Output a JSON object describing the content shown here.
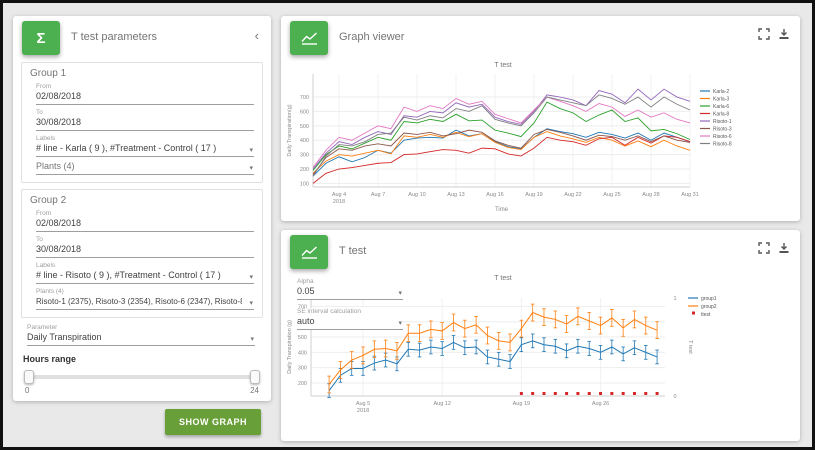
{
  "icons": {
    "sigma": "Σ",
    "dropdown": "▾",
    "collapse": "‹",
    "chart": "line-chart",
    "fullscreen": "fullscreen",
    "download": "download"
  },
  "colors": {
    "accent_green": "#4caf50",
    "button_green": "#689f38",
    "page_bg": "#e9e9e9",
    "ttest_marker_red": "#d62728"
  },
  "left_panel": {
    "title": "T test parameters",
    "groups": [
      {
        "title": "Group 1",
        "from_label": "From",
        "from_value": "02/08/2018",
        "to_label": "To",
        "to_value": "30/08/2018",
        "labels_label": "Labels",
        "labels_value": "# line - Karla ( 9 ), #Treatment - Control ( 17 )",
        "plants_label": "",
        "plants_value": "Plants (4)"
      },
      {
        "title": "Group 2",
        "from_label": "From",
        "from_value": "02/08/2018",
        "to_label": "To",
        "to_value": "30/08/2018",
        "labels_label": "Labels",
        "labels_value": "# line - Risoto ( 9 ), #Treatment - Control ( 17 )",
        "plants_label": "Plants (4)",
        "plants_value": "Risoto-1 (2375), Risoto-3 (2354), Risoto-6 (2347), Risoto-8 (2353)"
      }
    ],
    "parameter_label": "Parameter",
    "parameter_value": "Daily Transpiration",
    "hours_label": "Hours range",
    "hours_min": "0",
    "hours_max": "24",
    "show_graph": "SHOW GRAPH"
  },
  "graph_viewer": {
    "title": "Graph viewer"
  },
  "ttest_panel": {
    "title": "T test",
    "alpha_label": "Alpha",
    "alpha_value": "0.05",
    "se_label": "SE interval calculation",
    "se_value": "auto"
  },
  "chart_data": [
    {
      "type": "line",
      "title": "T test",
      "xlabel": "Time",
      "ylabel": "Daily Transpiration(g)",
      "legend_position": "right",
      "grid": true,
      "xlim": [
        2,
        31
      ],
      "ylim": [
        75,
        860
      ],
      "yticks": [
        100,
        200,
        300,
        400,
        500,
        600,
        700
      ],
      "xticks": [
        {
          "v": 4,
          "label": "Aug 4",
          "sub": "2018"
        },
        {
          "v": 7,
          "label": "Aug 7"
        },
        {
          "v": 10,
          "label": "Aug 10"
        },
        {
          "v": 13,
          "label": "Aug 13"
        },
        {
          "v": 16,
          "label": "Aug 16"
        },
        {
          "v": 19,
          "label": "Aug 19"
        },
        {
          "v": 22,
          "label": "Aug 22"
        },
        {
          "v": 25,
          "label": "Aug 25"
        },
        {
          "v": 28,
          "label": "Aug 28"
        },
        {
          "v": 31,
          "label": "Aug 31"
        }
      ],
      "x": [
        2,
        3,
        4,
        5,
        6,
        7,
        8,
        9,
        10,
        11,
        12,
        13,
        14,
        15,
        16,
        17,
        18,
        19,
        20,
        21,
        22,
        23,
        24,
        25,
        26,
        27,
        28,
        29,
        30,
        31
      ],
      "series": [
        {
          "name": "Karla-2",
          "color": "#1f77b4",
          "values": [
            150,
            240,
            285,
            250,
            280,
            330,
            310,
            400,
            415,
            420,
            415,
            470,
            430,
            445,
            390,
            355,
            340,
            420,
            480,
            460,
            445,
            420,
            455,
            440,
            415,
            450,
            400,
            450,
            420,
            390
          ]
        },
        {
          "name": "Karla-3",
          "color": "#ff7f0e",
          "values": [
            170,
            255,
            300,
            290,
            310,
            330,
            305,
            430,
            420,
            440,
            420,
            455,
            425,
            445,
            385,
            350,
            335,
            420,
            460,
            430,
            410,
            385,
            420,
            400,
            360,
            395,
            355,
            400,
            360,
            330
          ]
        },
        {
          "name": "Karla-6",
          "color": "#2ca02c",
          "values": [
            190,
            300,
            360,
            340,
            380,
            420,
            400,
            530,
            520,
            545,
            530,
            580,
            535,
            540,
            470,
            450,
            425,
            520,
            665,
            620,
            590,
            530,
            575,
            610,
            530,
            555,
            465,
            475,
            445,
            405
          ]
        },
        {
          "name": "Karla-8",
          "color": "#d62728",
          "values": [
            100,
            170,
            200,
            210,
            225,
            240,
            245,
            300,
            305,
            320,
            335,
            330,
            310,
            345,
            340,
            305,
            290,
            345,
            420,
            400,
            390,
            365,
            410,
            420,
            365,
            420,
            380,
            430,
            420,
            390
          ]
        },
        {
          "name": "Risoto-1",
          "color": "#9467bd",
          "values": [
            200,
            310,
            390,
            370,
            420,
            460,
            440,
            570,
            560,
            600,
            590,
            660,
            630,
            650,
            560,
            530,
            510,
            600,
            715,
            700,
            680,
            640,
            745,
            720,
            660,
            755,
            680,
            755,
            700,
            670
          ]
        },
        {
          "name": "Risoto-3",
          "color": "#8c564b",
          "values": [
            160,
            280,
            340,
            330,
            360,
            375,
            360,
            450,
            440,
            455,
            430,
            445,
            470,
            455,
            395,
            365,
            345,
            440,
            475,
            455,
            430,
            400,
            435,
            425,
            400,
            430,
            390,
            430,
            400,
            385
          ]
        },
        {
          "name": "Risoto-6",
          "color": "#e377c2",
          "values": [
            210,
            330,
            420,
            400,
            450,
            500,
            480,
            630,
            600,
            640,
            620,
            690,
            650,
            670,
            580,
            550,
            520,
            610,
            700,
            670,
            640,
            600,
            655,
            630,
            565,
            610,
            560,
            590,
            545,
            520
          ]
        },
        {
          "name": "Risoto-8",
          "color": "#7f7f7f",
          "values": [
            150,
            290,
            370,
            360,
            390,
            440,
            450,
            560,
            540,
            570,
            555,
            620,
            600,
            640,
            545,
            520,
            500,
            590,
            700,
            680,
            660,
            640,
            715,
            690,
            650,
            700,
            630,
            700,
            650,
            610
          ]
        }
      ]
    },
    {
      "type": "line+errorbar",
      "title": "T test",
      "ylabel": "Daily Transpiration (g)",
      "y2label": "T test",
      "legend_position": "right",
      "grid": true,
      "xlim": [
        0.4,
        31.7
      ],
      "ylim": [
        115,
        755
      ],
      "yticks": [
        200,
        300,
        400,
        500,
        600,
        700
      ],
      "y2ticks": [
        0,
        1
      ],
      "xticks": [
        {
          "v": 5,
          "label": "Aug 5",
          "sub": "2018"
        },
        {
          "v": 12,
          "label": "Aug 12"
        },
        {
          "v": 19,
          "label": "Aug 19"
        },
        {
          "v": 26,
          "label": "Aug 26"
        }
      ],
      "x": [
        2,
        3,
        4,
        5,
        6,
        7,
        8,
        9,
        10,
        11,
        12,
        13,
        14,
        15,
        16,
        17,
        18,
        19,
        20,
        21,
        22,
        23,
        24,
        25,
        26,
        27,
        28,
        29,
        30,
        31
      ],
      "series": [
        {
          "name": "group1",
          "color": "#1f77b4",
          "err": 45,
          "values": [
            150,
            250,
            295,
            295,
            330,
            350,
            325,
            420,
            415,
            435,
            425,
            465,
            430,
            435,
            370,
            355,
            340,
            450,
            475,
            450,
            440,
            410,
            440,
            425,
            400,
            435,
            390,
            430,
            400,
            370
          ]
        },
        {
          "name": "group2",
          "color": "#ff7f0e",
          "err": 55,
          "values": [
            190,
            285,
            350,
            380,
            420,
            425,
            410,
            525,
            525,
            550,
            540,
            595,
            555,
            580,
            510,
            475,
            465,
            555,
            660,
            630,
            615,
            585,
            635,
            605,
            575,
            625,
            560,
            615,
            575,
            545
          ]
        }
      ],
      "ttest_markers": {
        "name": "ttest",
        "color": "#d62728",
        "y2": 0,
        "x": [
          19,
          20,
          21,
          22,
          23,
          24,
          25,
          26,
          27,
          28,
          29,
          30,
          31
        ]
      }
    }
  ]
}
